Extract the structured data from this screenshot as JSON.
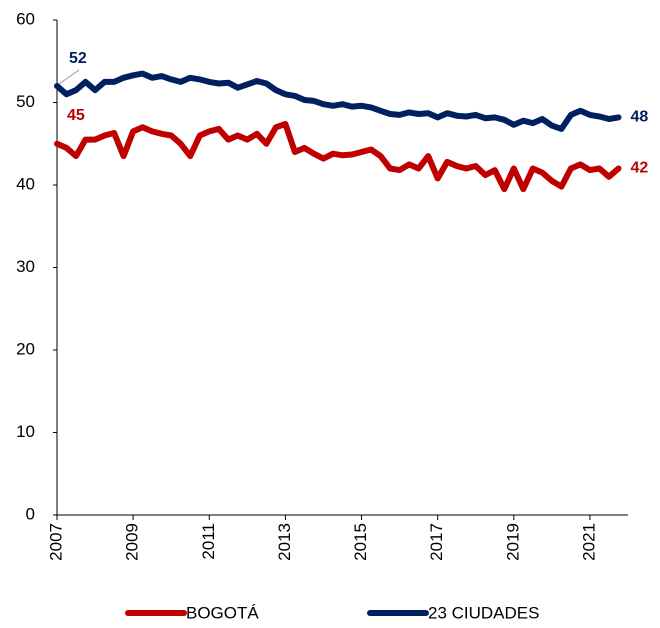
{
  "chart_data": {
    "type": "line",
    "x": [
      2007,
      2007.25,
      2007.5,
      2007.75,
      2008,
      2008.25,
      2008.5,
      2008.75,
      2009,
      2009.25,
      2009.5,
      2009.75,
      2010,
      2010.25,
      2010.5,
      2010.75,
      2011,
      2011.25,
      2011.5,
      2011.75,
      2012,
      2012.25,
      2012.5,
      2012.75,
      2013,
      2013.25,
      2013.5,
      2013.75,
      2014,
      2014.25,
      2014.5,
      2014.75,
      2015,
      2015.25,
      2015.5,
      2015.75,
      2016,
      2016.25,
      2016.5,
      2016.75,
      2017,
      2017.25,
      2017.5,
      2017.75,
      2018,
      2018.25,
      2018.5,
      2018.75,
      2019,
      2019.25,
      2019.5,
      2019.75,
      2020,
      2020.25,
      2020.5,
      2020.75,
      2021,
      2021.25,
      2021.5,
      2021.75
    ],
    "series": [
      {
        "name": "BOGOTÁ",
        "color": "#c00000",
        "values": [
          45,
          44.5,
          43.5,
          45.5,
          45.5,
          46,
          46.3,
          43.5,
          46.5,
          47,
          46.5,
          46.2,
          46,
          45,
          43.5,
          46,
          46.5,
          46.8,
          45.5,
          46,
          45.5,
          46.2,
          45,
          47,
          47.4,
          44,
          44.5,
          43.8,
          43.2,
          43.8,
          43.6,
          43.7,
          44,
          44.3,
          43.5,
          42,
          41.8,
          42.5,
          42,
          43.5,
          40.8,
          42.8,
          42.3,
          42,
          42.3,
          41.2,
          41.8,
          39.5,
          42,
          39.5,
          42,
          41.5,
          40.5,
          39.8,
          42,
          42.5,
          41.8,
          42,
          41,
          42
        ],
        "labels": [
          {
            "index": 0,
            "label": "45"
          },
          {
            "index": 59,
            "label": "42"
          }
        ]
      },
      {
        "name": "23 CIUDADES",
        "color": "#002060",
        "values": [
          52,
          51,
          51.5,
          52.5,
          51.5,
          52.5,
          52.5,
          53,
          53.3,
          53.5,
          53,
          53.2,
          52.8,
          52.5,
          53,
          52.8,
          52.5,
          52.3,
          52.4,
          51.8,
          52.2,
          52.6,
          52.3,
          51.5,
          51,
          50.8,
          50.3,
          50.2,
          49.8,
          49.6,
          49.8,
          49.5,
          49.6,
          49.4,
          49,
          48.6,
          48.5,
          48.8,
          48.6,
          48.7,
          48.2,
          48.7,
          48.4,
          48.3,
          48.5,
          48.1,
          48.2,
          47.9,
          47.3,
          47.8,
          47.5,
          48,
          47.2,
          46.8,
          48.5,
          49,
          48.5,
          48.3,
          48,
          48.2
        ],
        "labels": [
          {
            "index": 0,
            "label": "52"
          },
          {
            "index": 59,
            "label": "48"
          }
        ]
      }
    ],
    "xlim": [
      2007,
      2022
    ],
    "xticks": [
      2007,
      2009,
      2011,
      2013,
      2015,
      2017,
      2019,
      2021
    ],
    "ylim": [
      0,
      60
    ],
    "yticks": [
      0,
      10,
      20,
      30,
      40,
      50,
      60
    ],
    "grid": false
  }
}
